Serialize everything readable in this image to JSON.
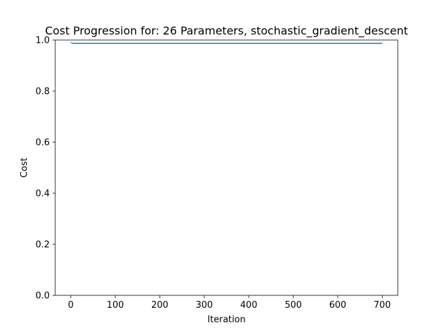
{
  "chart_data": {
    "type": "line",
    "title": "Cost Progression for: 26 Parameters, stochastic_gradient_descent",
    "xlabel": "Iteration",
    "ylabel": "Cost",
    "xlim": [
      -35,
      735
    ],
    "ylim": [
      0,
      1.0
    ],
    "xticks": [
      0,
      100,
      200,
      300,
      400,
      500,
      600,
      700
    ],
    "yticks": [
      0.0,
      0.2,
      0.4,
      0.6,
      0.8,
      1.0
    ],
    "ytick_labels": [
      "0.0",
      "0.2",
      "0.4",
      "0.6",
      "0.8",
      "1.0"
    ],
    "grid": false,
    "series": [
      {
        "color": "#1f77b4",
        "x": [
          0,
          5,
          10,
          50,
          100,
          200,
          300,
          400,
          500,
          600,
          700
        ],
        "y": [
          0.99,
          0.987,
          0.987,
          0.987,
          0.987,
          0.987,
          0.987,
          0.987,
          0.987,
          0.987,
          0.987
        ]
      }
    ]
  }
}
